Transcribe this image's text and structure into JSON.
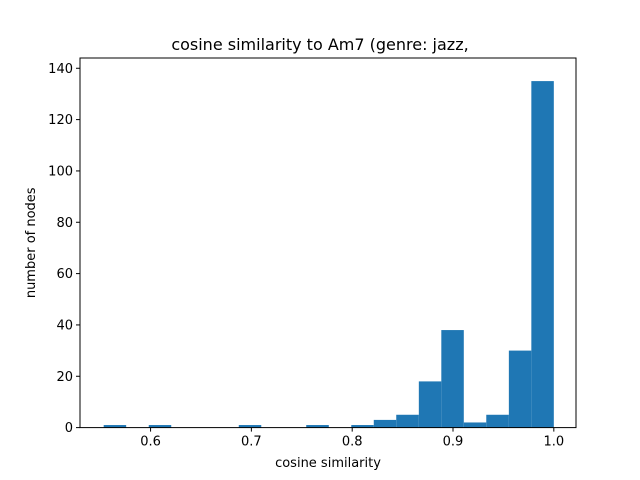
{
  "chart_data": {
    "type": "bar",
    "title": "cosine similarity to Am7 (genre: jazz,",
    "xlabel": "cosine similarity",
    "ylabel": "number of nodes",
    "xlim": [
      0.53,
      1.022
    ],
    "ylim": [
      0,
      144
    ],
    "xticks": [
      0.6,
      0.7,
      0.8,
      0.9,
      1.0
    ],
    "xtick_labels": [
      "0.6",
      "0.7",
      "0.8",
      "0.9",
      "1.0"
    ],
    "yticks": [
      0,
      20,
      40,
      60,
      80,
      100,
      120,
      140
    ],
    "ytick_labels": [
      "0",
      "20",
      "40",
      "60",
      "80",
      "100",
      "120",
      "140"
    ],
    "bin_edges": [
      0.5535,
      0.5758,
      0.5982,
      0.6205,
      0.6428,
      0.6651,
      0.6875,
      0.7098,
      0.7321,
      0.7544,
      0.7768,
      0.7991,
      0.8214,
      0.8437,
      0.8661,
      0.8884,
      0.9107,
      0.933,
      0.9554,
      0.9777,
      1.0
    ],
    "values": [
      1,
      0,
      1,
      0,
      0,
      0,
      1,
      0,
      0,
      1,
      0,
      1,
      3,
      5,
      18,
      38,
      2,
      5,
      30,
      135
    ],
    "color": "#1f77b4",
    "grid": false
  }
}
